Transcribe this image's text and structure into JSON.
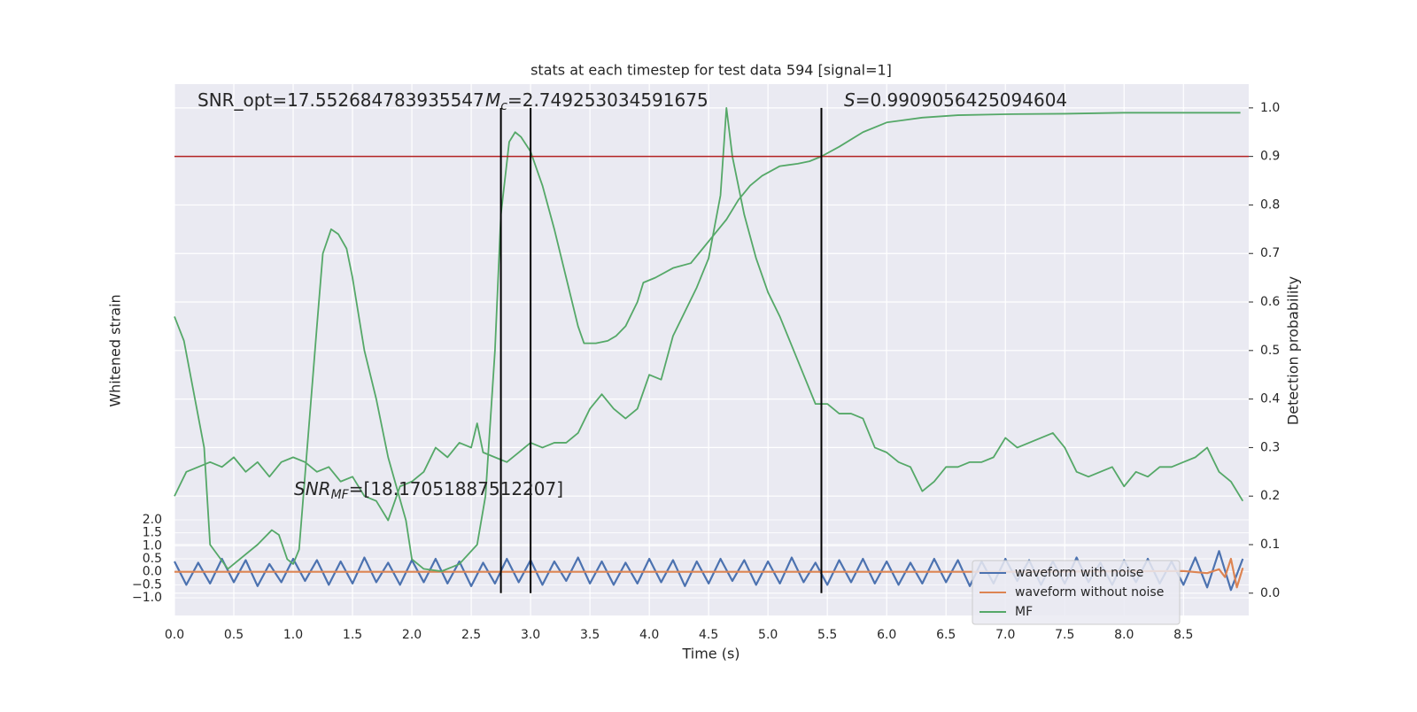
{
  "chart_data": {
    "type": "line",
    "title": "stats at each timestep for test data 594 [signal=1]",
    "xlabel": "Time (s)",
    "ylabel": "Whitened strain",
    "y2label": "Detection probability",
    "xlim": [
      0,
      9.05
    ],
    "ylim": [
      -1.68,
      18.77
    ],
    "y2lim": [
      -0.046,
      1.049
    ],
    "xticks": [
      {
        "value": 0,
        "label": "0.0"
      },
      {
        "value": 0.5,
        "label": "0.5"
      },
      {
        "value": 1,
        "label": "1.0"
      },
      {
        "value": 1.5,
        "label": "1.5"
      },
      {
        "value": 2,
        "label": "2.0"
      },
      {
        "value": 2.5,
        "label": "2.5"
      },
      {
        "value": 3,
        "label": "3.0"
      },
      {
        "value": 3.5,
        "label": "3.5"
      },
      {
        "value": 4,
        "label": "4.0"
      },
      {
        "value": 4.5,
        "label": "4.5"
      },
      {
        "value": 5,
        "label": "5.0"
      },
      {
        "value": 5.5,
        "label": "5.5"
      },
      {
        "value": 6,
        "label": "6.0"
      },
      {
        "value": 6.5,
        "label": "6.5"
      },
      {
        "value": 7,
        "label": "7.0"
      },
      {
        "value": 7.5,
        "label": "7.5"
      },
      {
        "value": 8,
        "label": "8.0"
      },
      {
        "value": 8.5,
        "label": "8.5"
      }
    ],
    "yticks": [
      {
        "value": -1,
        "label": "−1.0"
      },
      {
        "value": -0.5,
        "label": "−0.5"
      },
      {
        "value": 0,
        "label": "0.0"
      },
      {
        "value": 0.5,
        "label": "0.5"
      },
      {
        "value": 1,
        "label": "1.0"
      },
      {
        "value": 1.5,
        "label": "1.5"
      },
      {
        "value": 2,
        "label": "2.0"
      }
    ],
    "y2ticks": [
      {
        "value": 0,
        "label": "0.0"
      },
      {
        "value": 0.1,
        "label": "0.1"
      },
      {
        "value": 0.2,
        "label": "0.2"
      },
      {
        "value": 0.3,
        "label": "0.3"
      },
      {
        "value": 0.4,
        "label": "0.4"
      },
      {
        "value": 0.5,
        "label": "0.5"
      },
      {
        "value": 0.6,
        "label": "0.6"
      },
      {
        "value": 0.7,
        "label": "0.7"
      },
      {
        "value": 0.8,
        "label": "0.8"
      },
      {
        "value": 0.9,
        "label": "0.9"
      },
      {
        "value": 1,
        "label": "1.0"
      }
    ],
    "grid": true,
    "legend": "lower right",
    "series": [
      {
        "name": "waveform with noise",
        "color": "#4c72b0",
        "x": [
          0,
          0.1,
          0.2,
          0.3,
          0.4,
          0.5,
          0.6,
          0.7,
          0.8,
          0.9,
          1,
          1.1,
          1.2,
          1.3,
          1.4,
          1.5,
          1.6,
          1.7,
          1.8,
          1.9,
          2,
          2.1,
          2.2,
          2.3,
          2.4,
          2.5,
          2.6,
          2.7,
          2.8,
          2.9,
          3,
          3.1,
          3.2,
          3.3,
          3.4,
          3.5,
          3.6,
          3.7,
          3.8,
          3.9,
          4,
          4.1,
          4.2,
          4.3,
          4.4,
          4.5,
          4.6,
          4.7,
          4.8,
          4.9,
          5,
          5.1,
          5.2,
          5.3,
          5.4,
          5.5,
          5.6,
          5.7,
          5.8,
          5.9,
          6,
          6.1,
          6.2,
          6.3,
          6.4,
          6.5,
          6.6,
          6.7,
          6.8,
          6.9,
          7,
          7.1,
          7.2,
          7.3,
          7.4,
          7.5,
          7.6,
          7.7,
          7.8,
          7.9,
          8,
          8.1,
          8.2,
          8.3,
          8.4,
          8.5,
          8.6,
          8.7,
          8.8,
          8.9,
          9
        ],
        "values": [
          0.4,
          -0.5,
          0.35,
          -0.45,
          0.5,
          -0.4,
          0.45,
          -0.55,
          0.3,
          -0.4,
          0.5,
          -0.35,
          0.45,
          -0.5,
          0.4,
          -0.45,
          0.55,
          -0.4,
          0.35,
          -0.5,
          0.45,
          -0.4,
          0.5,
          -0.45,
          0.4,
          -0.55,
          0.35,
          -0.45,
          0.5,
          -0.4,
          0.45,
          -0.5,
          0.4,
          -0.35,
          0.55,
          -0.45,
          0.4,
          -0.5,
          0.35,
          -0.45,
          0.5,
          -0.4,
          0.45,
          -0.55,
          0.4,
          -0.45,
          0.5,
          -0.35,
          0.45,
          -0.5,
          0.4,
          -0.45,
          0.55,
          -0.4,
          0.35,
          -0.5,
          0.45,
          -0.4,
          0.5,
          -0.45,
          0.4,
          -0.5,
          0.35,
          -0.45,
          0.5,
          -0.4,
          0.45,
          -0.55,
          0.4,
          -0.45,
          0.5,
          -0.35,
          0.45,
          -0.5,
          0.4,
          -0.45,
          0.55,
          -0.4,
          0.35,
          -0.5,
          0.45,
          -0.4,
          0.5,
          -0.45,
          0.4,
          -0.5,
          0.55,
          -0.6,
          0.8,
          -0.7,
          0.5
        ]
      },
      {
        "name": "waveform without noise",
        "color": "#dd8452",
        "x": [
          0,
          1,
          2,
          3,
          4,
          5,
          6,
          7,
          8,
          8.5,
          8.7,
          8.8,
          8.85,
          8.9,
          8.95,
          9
        ],
        "values": [
          0,
          0,
          0,
          0,
          0,
          0,
          0,
          0,
          0.02,
          0.03,
          -0.05,
          0.1,
          -0.2,
          0.5,
          -0.6,
          0.15
        ]
      },
      {
        "name": "MF",
        "color": "#55a868",
        "axis": "y2",
        "x": [
          0,
          0.1,
          0.2,
          0.3,
          0.4,
          0.5,
          0.6,
          0.7,
          0.8,
          0.9,
          1,
          1.1,
          1.2,
          1.3,
          1.4,
          1.5,
          1.6,
          1.7,
          1.8,
          1.9,
          2,
          2.1,
          2.2,
          2.3,
          2.4,
          2.5,
          2.55,
          2.6,
          2.7,
          2.8,
          2.9,
          3,
          3.1,
          3.2,
          3.3,
          3.4,
          3.5,
          3.6,
          3.7,
          3.8,
          3.9,
          4,
          4.1,
          4.2,
          4.3,
          4.4,
          4.5,
          4.6,
          4.65,
          4.7,
          4.8,
          4.9,
          5,
          5.1,
          5.2,
          5.3,
          5.4,
          5.5,
          5.6,
          5.7,
          5.8,
          5.9,
          6,
          6.1,
          6.2,
          6.3,
          6.4,
          6.5,
          6.6,
          6.7,
          6.8,
          6.9,
          7,
          7.1,
          7.2,
          7.3,
          7.4,
          7.5,
          7.6,
          7.7,
          7.8,
          7.9,
          8,
          8.1,
          8.2,
          8.3,
          8.4,
          8.5,
          8.6,
          8.7,
          8.8,
          8.9,
          9
        ],
        "values": [
          0.2,
          0.25,
          0.26,
          0.27,
          0.26,
          0.28,
          0.25,
          0.27,
          0.24,
          0.27,
          0.28,
          0.27,
          0.25,
          0.26,
          0.23,
          0.24,
          0.2,
          0.19,
          0.15,
          0.22,
          0.23,
          0.25,
          0.3,
          0.28,
          0.31,
          0.3,
          0.35,
          0.29,
          0.28,
          0.27,
          0.29,
          0.31,
          0.3,
          0.31,
          0.31,
          0.33,
          0.38,
          0.41,
          0.38,
          0.36,
          0.38,
          0.45,
          0.44,
          0.53,
          0.58,
          0.63,
          0.69,
          0.82,
          1.0,
          0.9,
          0.78,
          0.69,
          0.62,
          0.57,
          0.51,
          0.45,
          0.39,
          0.39,
          0.37,
          0.37,
          0.36,
          0.3,
          0.29,
          0.27,
          0.26,
          0.21,
          0.23,
          0.26,
          0.26,
          0.27,
          0.27,
          0.28,
          0.32,
          0.3,
          0.31,
          0.32,
          0.33,
          0.3,
          0.25,
          0.24,
          0.25,
          0.26,
          0.22,
          0.25,
          0.24,
          0.26,
          0.26,
          0.27,
          0.28,
          0.3,
          0.25,
          0.23,
          0.19
        ]
      },
      {
        "color": "#55a868",
        "axis": "y2",
        "x": [
          0,
          0.08,
          0.25,
          0.3,
          0.45,
          0.7,
          0.82,
          0.88,
          0.95,
          1,
          1.05,
          1.2,
          1.25,
          1.32,
          1.38,
          1.45,
          1.5,
          1.6,
          1.7,
          1.8,
          1.95,
          2,
          2.1,
          2.25,
          2.4,
          2.55,
          2.62,
          2.7,
          2.75,
          2.82,
          2.87,
          2.92,
          3,
          3.1,
          3.2,
          3.3,
          3.4,
          3.45,
          3.55,
          3.65,
          3.72,
          3.8,
          3.9,
          3.95,
          4.05,
          4.2,
          4.35,
          4.45,
          4.55,
          4.65,
          4.75,
          4.85,
          4.95,
          5.1,
          5.25,
          5.35,
          5.45,
          5.6,
          5.8,
          6,
          6.3,
          6.6,
          7,
          7.5,
          8,
          8.5,
          8.98
        ],
        "values": [
          0.57,
          0.52,
          0.3,
          0.1,
          0.05,
          0.1,
          0.13,
          0.12,
          0.07,
          0.06,
          0.09,
          0.55,
          0.7,
          0.75,
          0.74,
          0.71,
          0.65,
          0.5,
          0.4,
          0.28,
          0.15,
          0.07,
          0.05,
          0.045,
          0.06,
          0.1,
          0.2,
          0.5,
          0.78,
          0.93,
          0.95,
          0.94,
          0.91,
          0.84,
          0.75,
          0.65,
          0.55,
          0.515,
          0.515,
          0.52,
          0.53,
          0.55,
          0.6,
          0.64,
          0.65,
          0.67,
          0.68,
          0.71,
          0.74,
          0.77,
          0.81,
          0.84,
          0.86,
          0.88,
          0.885,
          0.89,
          0.9,
          0.92,
          0.95,
          0.97,
          0.98,
          0.985,
          0.987,
          0.988,
          0.99,
          0.99,
          0.99
        ]
      }
    ],
    "hline": {
      "y": 0.9,
      "color": "#b22222"
    },
    "vlines": {
      "x": [
        2.75,
        3.0,
        5.45
      ],
      "ymin": 0,
      "ymax": 1.0,
      "color": "#000000"
    },
    "annotations": [
      {
        "text": "SNR_opt=17.552684783935547"
      },
      {
        "symbol": "M",
        "subscript": "c",
        "text": "=2.749253034591675"
      },
      {
        "symbol": "S",
        "text": "=0.9909056425094604"
      },
      {
        "symbol": "SNR",
        "subscript": "MF",
        "text": "=[18.17051887512207]"
      }
    ]
  }
}
